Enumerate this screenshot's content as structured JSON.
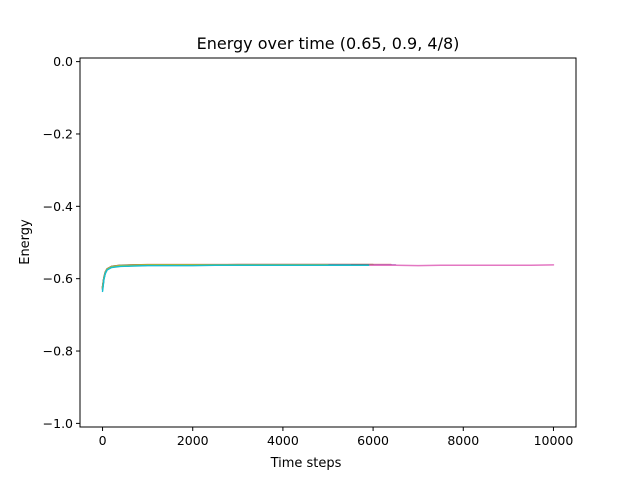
{
  "chart_data": {
    "type": "line",
    "title": "Energy over time (0.65, 0.9, 4/8)",
    "xlabel": "Time steps",
    "ylabel": "Energy",
    "xlim": [
      -500,
      10500
    ],
    "ylim": [
      -1.01,
      0.01
    ],
    "xticks": [
      0,
      2000,
      4000,
      6000,
      8000,
      10000
    ],
    "xtick_labels": [
      "0",
      "2000",
      "4000",
      "6000",
      "8000",
      "10000"
    ],
    "yticks": [
      0.0,
      -0.2,
      -0.4,
      -0.6,
      -0.8,
      -1.0
    ],
    "ytick_labels": [
      "0.0",
      "−0.2",
      "−0.4",
      "−0.6",
      "−0.8",
      "−1.0"
    ],
    "grid": false,
    "legend": "none",
    "series": [
      {
        "color": "#1f77b4",
        "x": [
          0,
          30,
          60,
          100,
          200,
          400,
          700,
          1000,
          1500,
          2000,
          2500,
          3000,
          3500,
          4000,
          4500,
          5000,
          5500,
          6000
        ],
        "y": [
          -0.63,
          -0.6,
          -0.585,
          -0.575,
          -0.568,
          -0.565,
          -0.564,
          -0.563,
          -0.563,
          -0.562,
          -0.562,
          -0.562,
          -0.562,
          -0.562,
          -0.562,
          -0.562,
          -0.562,
          -0.562
        ]
      },
      {
        "color": "#ff7f0e",
        "x": [
          0,
          30,
          60,
          100,
          200,
          400,
          700,
          1000,
          1500,
          2000,
          2500,
          3000,
          3500,
          4000,
          4500,
          5000,
          5500
        ],
        "y": [
          -0.625,
          -0.598,
          -0.583,
          -0.574,
          -0.567,
          -0.564,
          -0.563,
          -0.562,
          -0.562,
          -0.562,
          -0.562,
          -0.562,
          -0.562,
          -0.562,
          -0.562,
          -0.562,
          -0.562
        ]
      },
      {
        "color": "#2ca02c",
        "x": [
          0,
          30,
          60,
          100,
          200,
          400,
          700,
          1000,
          1500,
          2000,
          2500,
          3000,
          3500,
          4000,
          4500,
          5000,
          5500,
          5800
        ],
        "y": [
          -0.628,
          -0.6,
          -0.584,
          -0.575,
          -0.568,
          -0.565,
          -0.564,
          -0.563,
          -0.563,
          -0.563,
          -0.562,
          -0.562,
          -0.562,
          -0.562,
          -0.562,
          -0.562,
          -0.562,
          -0.562
        ]
      },
      {
        "color": "#d62728",
        "x": [
          0,
          30,
          60,
          100,
          200,
          400,
          700,
          1000,
          1500,
          2000,
          2500,
          3000,
          3500,
          4000,
          4500,
          5000,
          5500,
          6000,
          6400
        ],
        "y": [
          -0.622,
          -0.597,
          -0.582,
          -0.573,
          -0.566,
          -0.563,
          -0.562,
          -0.561,
          -0.561,
          -0.561,
          -0.561,
          -0.561,
          -0.561,
          -0.561,
          -0.561,
          -0.561,
          -0.561,
          -0.561,
          -0.561
        ]
      },
      {
        "color": "#9467bd",
        "x": [
          0,
          30,
          60,
          100,
          200,
          400,
          700,
          1000,
          1500,
          2000,
          2500,
          3000,
          3500,
          4000,
          4500,
          5000,
          5500,
          6000,
          6500
        ],
        "y": [
          -0.626,
          -0.599,
          -0.584,
          -0.575,
          -0.567,
          -0.564,
          -0.563,
          -0.562,
          -0.562,
          -0.562,
          -0.562,
          -0.562,
          -0.562,
          -0.562,
          -0.562,
          -0.562,
          -0.562,
          -0.562,
          -0.562
        ]
      },
      {
        "color": "#8c564b",
        "x": [
          0,
          30,
          60,
          100,
          200,
          400,
          700,
          1000,
          1500,
          2000,
          2500,
          3000,
          3500,
          4000,
          4500,
          5000,
          5500,
          6000
        ],
        "y": [
          -0.624,
          -0.598,
          -0.583,
          -0.574,
          -0.567,
          -0.564,
          -0.563,
          -0.562,
          -0.562,
          -0.562,
          -0.562,
          -0.561,
          -0.561,
          -0.561,
          -0.561,
          -0.561,
          -0.561,
          -0.561
        ]
      },
      {
        "color": "#e377c2",
        "x": [
          0,
          30,
          60,
          100,
          200,
          400,
          700,
          1000,
          1500,
          2000,
          2500,
          3000,
          3500,
          4000,
          4500,
          5000,
          5500,
          6000,
          6500,
          7000,
          7500,
          8000,
          8500,
          9000,
          9500,
          10000
        ],
        "y": [
          -0.627,
          -0.6,
          -0.585,
          -0.575,
          -0.568,
          -0.565,
          -0.564,
          -0.563,
          -0.563,
          -0.563,
          -0.563,
          -0.563,
          -0.563,
          -0.563,
          -0.563,
          -0.563,
          -0.563,
          -0.563,
          -0.563,
          -0.564,
          -0.563,
          -0.563,
          -0.563,
          -0.563,
          -0.563,
          -0.562
        ]
      },
      {
        "color": "#7f7f7f",
        "x": [
          0,
          30,
          60,
          100,
          200,
          400,
          700,
          1000,
          1500,
          2000,
          2500,
          3000,
          3500,
          4000,
          4500,
          5000,
          5500
        ],
        "y": [
          -0.623,
          -0.597,
          -0.582,
          -0.573,
          -0.566,
          -0.563,
          -0.562,
          -0.562,
          -0.562,
          -0.562,
          -0.562,
          -0.562,
          -0.562,
          -0.562,
          -0.562,
          -0.562,
          -0.562
        ]
      },
      {
        "color": "#bcbd22",
        "x": [
          0,
          30,
          60,
          100,
          200,
          400,
          700,
          1000,
          1500,
          2000,
          2500,
          3000,
          3500,
          4000,
          4500,
          5000
        ],
        "y": [
          -0.626,
          -0.599,
          -0.584,
          -0.574,
          -0.567,
          -0.564,
          -0.563,
          -0.562,
          -0.562,
          -0.562,
          -0.562,
          -0.562,
          -0.562,
          -0.562,
          -0.562,
          -0.562
        ]
      },
      {
        "color": "#17becf",
        "x": [
          0,
          30,
          60,
          100,
          200,
          400,
          700,
          1000,
          1500,
          2000,
          2500,
          3000,
          3500,
          4000,
          4500,
          5000,
          5500,
          5900
        ],
        "y": [
          -0.635,
          -0.602,
          -0.586,
          -0.576,
          -0.569,
          -0.566,
          -0.565,
          -0.564,
          -0.564,
          -0.564,
          -0.563,
          -0.563,
          -0.563,
          -0.563,
          -0.563,
          -0.563,
          -0.563,
          -0.563
        ]
      }
    ]
  }
}
